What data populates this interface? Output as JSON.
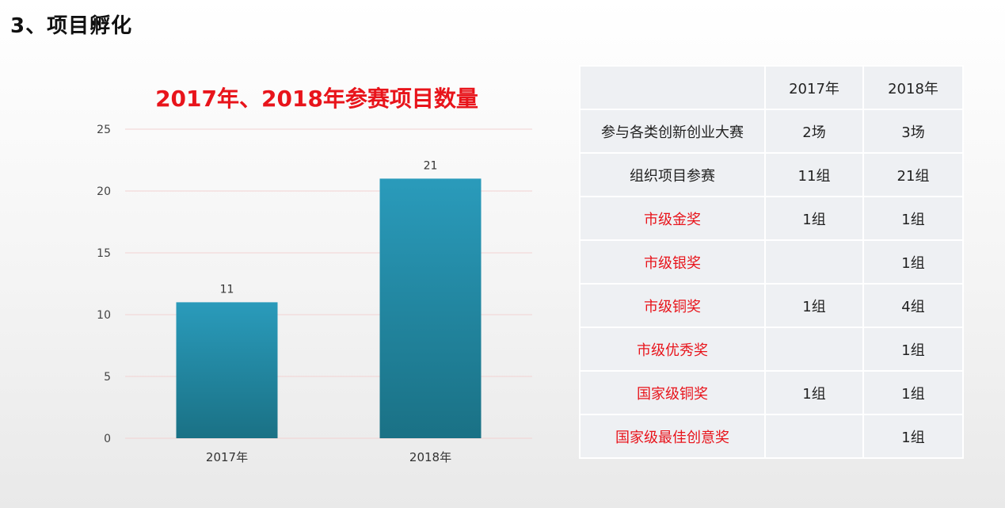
{
  "page": {
    "title": "3、项目孵化"
  },
  "chart_data": {
    "type": "bar",
    "title": "2017年、2018年参赛项目数量",
    "categories": [
      "2017年",
      "2018年"
    ],
    "values": [
      11,
      21
    ],
    "data_labels": [
      "11",
      "21"
    ],
    "ylim": [
      0,
      25
    ],
    "yticks": [
      0,
      5,
      10,
      15,
      20,
      25
    ],
    "xlabel": "",
    "ylabel": "",
    "grid": true,
    "legend": "none",
    "colors": {
      "bar_top": "#2a9bbb",
      "bar_bottom": "#1a7185",
      "grid": "#f2d2d2",
      "title": "#e8141b"
    }
  },
  "table": {
    "headers": [
      "",
      "2017年",
      "2018年"
    ],
    "rows": [
      {
        "label": "参与各类创新创业大赛",
        "v2017": "2场",
        "v2018": "3场",
        "highlight": false
      },
      {
        "label": "组织项目参赛",
        "v2017": "11组",
        "v2018": "21组",
        "highlight": false
      },
      {
        "label": "市级金奖",
        "v2017": "1组",
        "v2018": "1组",
        "highlight": true
      },
      {
        "label": "市级银奖",
        "v2017": "",
        "v2018": "1组",
        "highlight": true
      },
      {
        "label": "市级铜奖",
        "v2017": "1组",
        "v2018": "4组",
        "highlight": true
      },
      {
        "label": "市级优秀奖",
        "v2017": "",
        "v2018": "1组",
        "highlight": true
      },
      {
        "label": "国家级铜奖",
        "v2017": "1组",
        "v2018": "1组",
        "highlight": true
      },
      {
        "label": "国家级最佳创意奖",
        "v2017": "",
        "v2018": "1组",
        "highlight": true
      }
    ],
    "colors": {
      "highlight_text": "#e8141b"
    }
  }
}
